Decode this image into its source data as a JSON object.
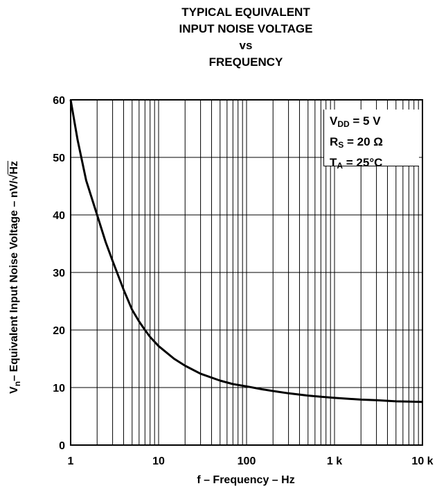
{
  "title_lines": [
    "TYPICAL EQUIVALENT",
    "INPUT NOISE VOLTAGE",
    "vs",
    "FREQUENCY"
  ],
  "axes": {
    "ylabel_main": "V",
    "ylabel_sub": "n",
    "ylabel_rest": "– Equivalent Input Noise Voltage – nV/",
    "ylabel_unit": "Hz",
    "xlabel": "f – Frequency – Hz"
  },
  "legend": {
    "vdd_main": "V",
    "vdd_sub": "DD",
    "vdd_rest": " = 5 V",
    "rs_main": "R",
    "rs_sub": "S",
    "rs_rest": " = 20 Ω",
    "ta_main": "T",
    "ta_sub": "A",
    "ta_rest": " = 25°C"
  },
  "chart_data": {
    "type": "line",
    "x_scale": "log",
    "xlim": [
      1,
      10000
    ],
    "ylim": [
      0,
      60
    ],
    "x_ticks": [
      1,
      10,
      100,
      1000,
      10000
    ],
    "x_tick_labels": [
      "1",
      "10",
      "100",
      "1 k",
      "10 k"
    ],
    "y_ticks": [
      0,
      10,
      20,
      30,
      40,
      50,
      60
    ],
    "y_tick_labels": [
      "0",
      "10",
      "20",
      "30",
      "40",
      "50",
      "60"
    ],
    "grid": true,
    "series": [
      {
        "x": [
          1,
          1.2,
          1.5,
          2,
          2.5,
          3,
          4,
          5,
          6,
          7,
          8,
          10,
          15,
          20,
          30,
          50,
          70,
          100,
          150,
          200,
          300,
          500,
          700,
          1000,
          2000,
          3000,
          5000,
          7000,
          10000
        ],
        "y": [
          60,
          53,
          46,
          40,
          35.3,
          32,
          27,
          23.5,
          21.5,
          20,
          18.8,
          17.2,
          15,
          13.8,
          12.4,
          11.2,
          10.6,
          10.2,
          9.7,
          9.4,
          9.0,
          8.6,
          8.4,
          8.2,
          7.9,
          7.8,
          7.6,
          7.55,
          7.5
        ]
      }
    ]
  },
  "colors": {
    "line": "#000000",
    "grid": "#000000"
  }
}
